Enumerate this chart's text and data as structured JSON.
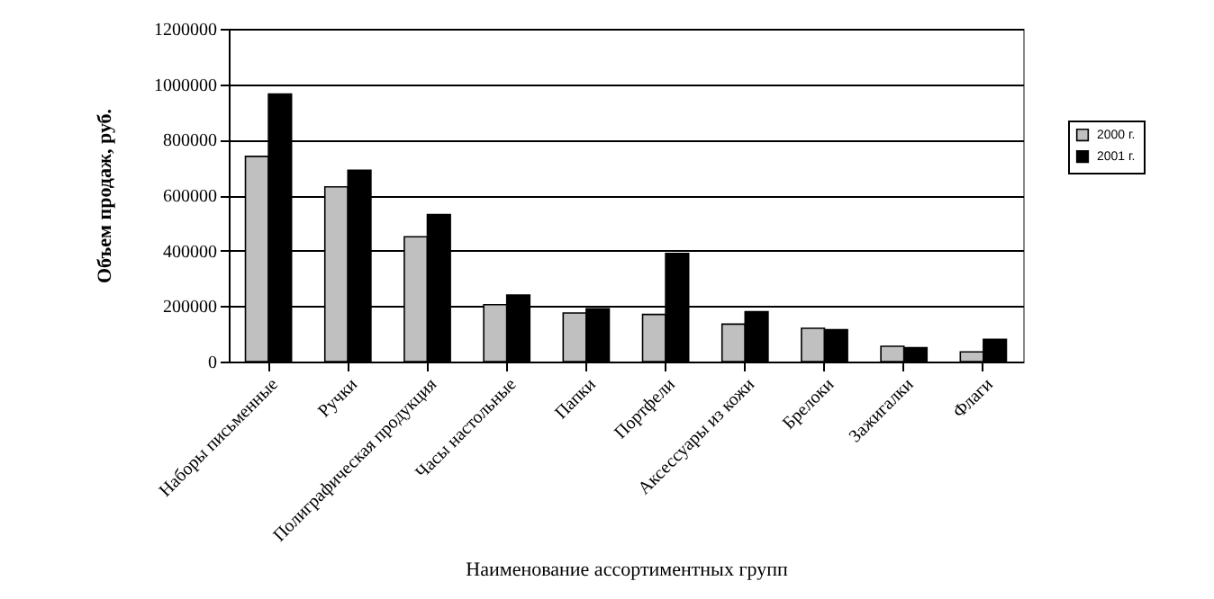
{
  "chart_data": {
    "type": "bar",
    "xlabel": "Наименование ассортиментных групп",
    "ylabel": "Объем продаж, руб.",
    "categories": [
      "Наборы письменные",
      "Ручки",
      "Полиграфическая продукция",
      "Часы настольные",
      "Папки",
      "Портфели",
      "Аксессуары из кожи",
      "Брелоки",
      "Зажигалки",
      "Флаги"
    ],
    "series": [
      {
        "name": "2000 г.",
        "color": "#c0c0c0",
        "values": [
          740000,
          630000,
          450000,
          205000,
          175000,
          170000,
          135000,
          120000,
          55000,
          35000
        ]
      },
      {
        "name": "2001 г.",
        "color": "#000000",
        "values": [
          965000,
          690000,
          530000,
          240000,
          190000,
          390000,
          180000,
          115000,
          50000,
          80000
        ]
      }
    ],
    "ylim": [
      0,
      1200000
    ],
    "yticks": [
      0,
      200000,
      400000,
      600000,
      800000,
      1000000,
      1200000
    ],
    "grid": "y",
    "legend": "right"
  }
}
